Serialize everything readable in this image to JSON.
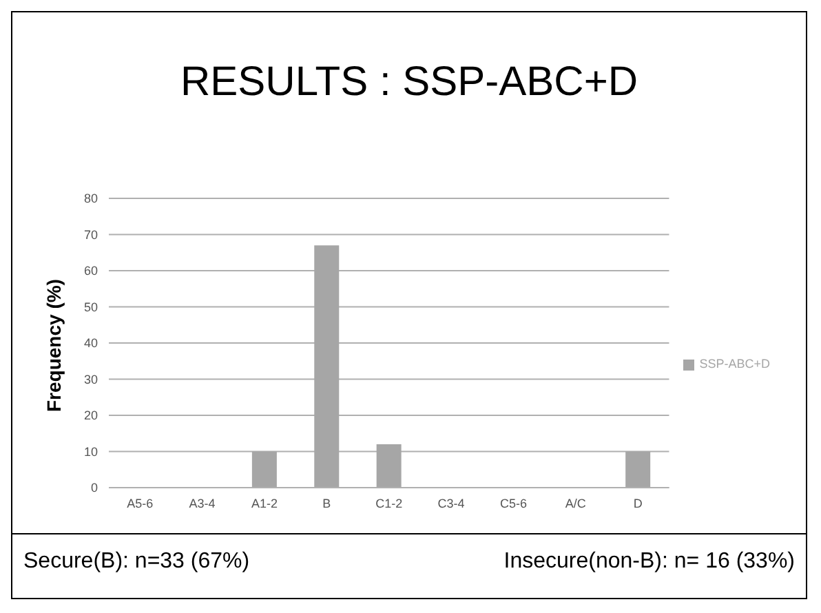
{
  "chart_data": {
    "type": "bar",
    "title": "RESULTS : SSP-ABC+D",
    "ylabel": "Frequency (%)",
    "categories": [
      "A5-6",
      "A3-4",
      "A1-2",
      "B",
      "C1-2",
      "C3-4",
      "C5-6",
      "A/C",
      "D"
    ],
    "series": [
      {
        "name": "SSP-ABC+D",
        "color": "#a6a6a6",
        "values": [
          0,
          0,
          10,
          67,
          12,
          0,
          0,
          0,
          10
        ]
      }
    ],
    "ylim": [
      0,
      80
    ],
    "yticks": [
      0,
      10,
      20,
      30,
      40,
      50,
      60,
      70,
      80
    ],
    "grid": "y",
    "legend": "right",
    "annotations": [
      "Secure(B): n=33 (67%)",
      "Insecure(non-B): n= 16 (33%)"
    ]
  }
}
